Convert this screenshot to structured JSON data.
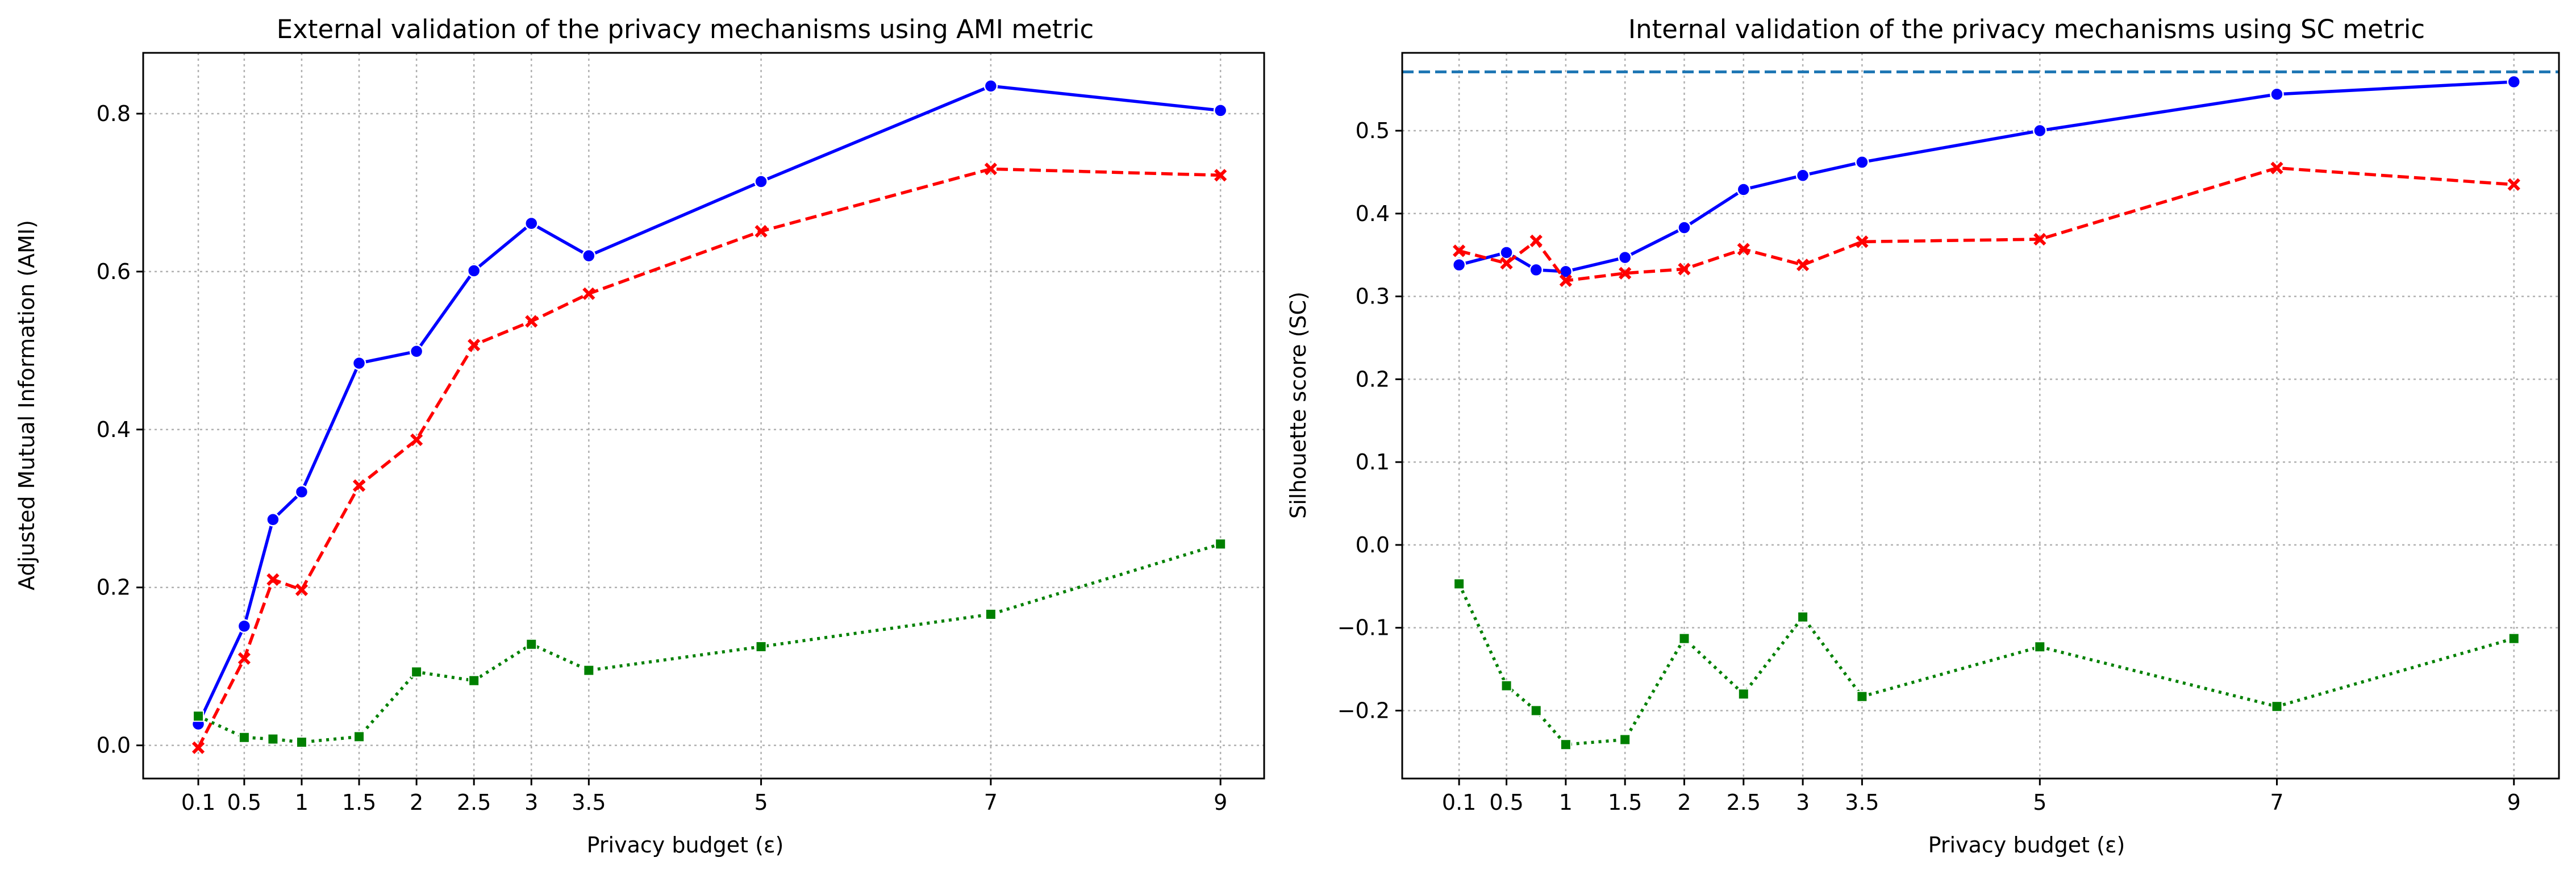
{
  "chart_data": [
    {
      "type": "line",
      "title": "External validation of the privacy mechanisms using AMI metric",
      "xlabel": "Privacy budget (ε)",
      "ylabel": "Adjusted Mutual Information (AMI)",
      "x": [
        0.1,
        0.5,
        0.75,
        1,
        1.5,
        2,
        2.5,
        3,
        3.5,
        5,
        7,
        9
      ],
      "xticks": [
        0.1,
        0.5,
        1,
        1.5,
        2,
        2.5,
        3,
        3.5,
        5,
        7,
        9
      ],
      "xtick_labels": [
        "0.1",
        "0.5",
        "1",
        "1.5",
        "2",
        "2.5",
        "3",
        "3.5",
        "5",
        "7",
        "9"
      ],
      "xlim": [
        -0.38,
        9.38
      ],
      "ylim": [
        -0.042,
        0.877
      ],
      "yticks": [
        0.0,
        0.2,
        0.4,
        0.6,
        0.8
      ],
      "ytick_labels": [
        "0.0",
        "0.2",
        "0.4",
        "0.6",
        "0.8"
      ],
      "grid": true,
      "series": [
        {
          "color": "#0000ff",
          "linestyle": "solid",
          "marker": "circle",
          "values": [
            0.027,
            0.151,
            0.286,
            0.321,
            0.484,
            0.499,
            0.601,
            0.661,
            0.62,
            0.714,
            0.835,
            0.804
          ]
        },
        {
          "color": "#ff0000",
          "linestyle": "dashed",
          "marker": "x",
          "values": [
            -0.003,
            0.11,
            0.21,
            0.197,
            0.329,
            0.387,
            0.507,
            0.537,
            0.572,
            0.651,
            0.73,
            0.722
          ]
        },
        {
          "color": "#008000",
          "linestyle": "dotted",
          "marker": "square",
          "values": [
            0.037,
            0.01,
            0.008,
            0.004,
            0.011,
            0.093,
            0.082,
            0.128,
            0.095,
            0.125,
            0.166,
            0.255
          ]
        }
      ]
    },
    {
      "type": "line",
      "title": "Internal validation of the privacy mechanisms using SC metric",
      "xlabel": "Privacy budget (ε)",
      "ylabel": "Silhouette score (SC)",
      "x": [
        0.1,
        0.5,
        0.75,
        1,
        1.5,
        2,
        2.5,
        3,
        3.5,
        5,
        7,
        9
      ],
      "xticks": [
        0.1,
        0.5,
        1,
        1.5,
        2,
        2.5,
        3,
        3.5,
        5,
        7,
        9
      ],
      "xtick_labels": [
        "0.1",
        "0.5",
        "1",
        "1.5",
        "2",
        "2.5",
        "3",
        "3.5",
        "5",
        "7",
        "9"
      ],
      "xlim": [
        -0.38,
        9.38
      ],
      "ylim": [
        -0.282,
        0.594
      ],
      "yticks": [
        -0.2,
        -0.1,
        0.0,
        0.1,
        0.2,
        0.3,
        0.4,
        0.5
      ],
      "ytick_labels": [
        "−0.2",
        "−0.1",
        "0.0",
        "0.1",
        "0.2",
        "0.3",
        "0.4",
        "0.5"
      ],
      "grid": true,
      "reference_line": {
        "y": 0.571,
        "color": "#1f77b4",
        "linestyle": "dashed"
      },
      "series": [
        {
          "color": "#0000ff",
          "linestyle": "solid",
          "marker": "circle",
          "values": [
            0.338,
            0.353,
            0.332,
            0.33,
            0.347,
            0.383,
            0.429,
            0.446,
            0.462,
            0.5,
            0.544,
            0.559
          ]
        },
        {
          "color": "#ff0000",
          "linestyle": "dashed",
          "marker": "x",
          "values": [
            0.355,
            0.34,
            0.367,
            0.319,
            0.328,
            0.333,
            0.357,
            0.338,
            0.366,
            0.369,
            0.455,
            0.435
          ]
        },
        {
          "color": "#008000",
          "linestyle": "dotted",
          "marker": "square",
          "values": [
            -0.047,
            -0.17,
            -0.2,
            -0.241,
            -0.235,
            -0.113,
            -0.18,
            -0.087,
            -0.183,
            -0.123,
            -0.195,
            -0.113
          ]
        }
      ]
    }
  ]
}
